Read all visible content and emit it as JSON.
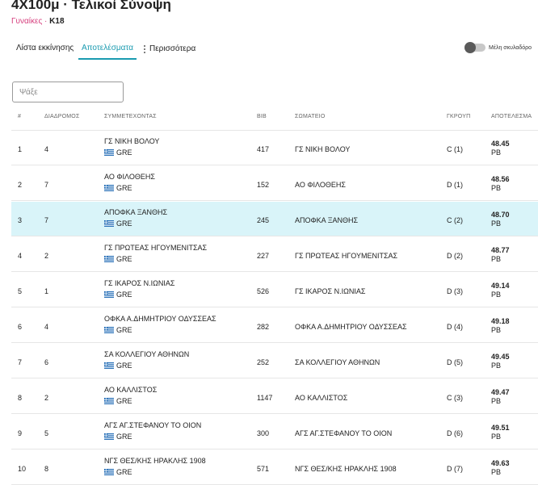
{
  "header": {
    "title": "4X100μ · Τελικοί Σύνοψη",
    "category": "Γυναίκες",
    "separator": " · ",
    "age_group": "K18"
  },
  "tabs": [
    {
      "label": "Λίστα εκκίνησης",
      "active": false
    },
    {
      "label": "Αποτελέσματα",
      "active": true
    },
    {
      "label": "Περισσότερα",
      "active": false
    }
  ],
  "dark_mode": {
    "label": "Μέλη σκυλαδόρο",
    "enabled": false
  },
  "search": {
    "placeholder": "Ψάξε",
    "value": ""
  },
  "colors": {
    "accent": "#1a9bb0",
    "category": "#d6417f",
    "highlight_row": "#d9f4f9"
  },
  "table": {
    "columns": [
      "#",
      "ΔΙΑΔΡΟΜΟΣ",
      "ΣΥΜΜΕΤΕΧΟΝΤΑΣ",
      "BIB",
      "ΣΩΜΑΤΕΙΟ",
      "ΓΚΡΟΥΠ",
      "ΑΠΟΤΕΛΕΣΜΑ"
    ],
    "rows": [
      {
        "rank": "1",
        "lane": "4",
        "name": "ΓΣ ΝΙΚΗ ΒΟΛΟΥ",
        "country": "GRE",
        "bib": "417",
        "club": "ΓΣ ΝΙΚΗ ΒΟΛΟΥ",
        "group": "C (1)",
        "mark": "48.45",
        "note": "PB"
      },
      {
        "rank": "2",
        "lane": "7",
        "name": "ΑΟ ΦΙΛΟΘΕΗΣ",
        "country": "GRE",
        "bib": "152",
        "club": "ΑΟ ΦΙΛΟΘΕΗΣ",
        "group": "D (1)",
        "mark": "48.56",
        "note": "PB"
      },
      {
        "rank": "3",
        "lane": "7",
        "name": "ΑΠΟΦΚΑ ΞΑΝΘΗΣ",
        "country": "GRE",
        "bib": "245",
        "club": "ΑΠΟΦΚΑ ΞΑΝΘΗΣ",
        "group": "C (2)",
        "mark": "48.70",
        "note": "PB"
      },
      {
        "rank": "4",
        "lane": "2",
        "name": "ΓΣ ΠΡΩΤΕΑΣ ΗΓΟΥΜΕΝΙΤΣΑΣ",
        "country": "GRE",
        "bib": "227",
        "club": "ΓΣ ΠΡΩΤΕΑΣ ΗΓΟΥΜΕΝΙΤΣΑΣ",
        "group": "D (2)",
        "mark": "48.77",
        "note": "PB"
      },
      {
        "rank": "5",
        "lane": "1",
        "name": "ΓΣ ΙΚΑΡΟΣ Ν.ΙΩΝΙΑΣ",
        "country": "GRE",
        "bib": "526",
        "club": "ΓΣ ΙΚΑΡΟΣ Ν.ΙΩΝΙΑΣ",
        "group": "D (3)",
        "mark": "49.14",
        "note": "PB"
      },
      {
        "rank": "6",
        "lane": "4",
        "name": "ΟΦΚΑ Α.ΔΗΜΗΤΡΙΟΥ ΟΔΥΣΣΕΑΣ",
        "country": "GRE",
        "bib": "282",
        "club": "ΟΦΚΑ Α.ΔΗΜΗΤΡΙΟΥ ΟΔΥΣΣΕΑΣ",
        "group": "D (4)",
        "mark": "49.18",
        "note": "PB"
      },
      {
        "rank": "7",
        "lane": "6",
        "name": "ΣΑ ΚΟΛΛΕΓΙΟΥ ΑΘΗΝΩΝ",
        "country": "GRE",
        "bib": "252",
        "club": "ΣΑ ΚΟΛΛΕΓΙΟΥ ΑΘΗΝΩΝ",
        "group": "D (5)",
        "mark": "49.45",
        "note": "PB"
      },
      {
        "rank": "8",
        "lane": "2",
        "name": "ΑΟ ΚΑΛΛΙΣΤΟΣ",
        "country": "GRE",
        "bib": "1147",
        "club": "ΑΟ ΚΑΛΛΙΣΤΟΣ",
        "group": "C (3)",
        "mark": "49.47",
        "note": "PB"
      },
      {
        "rank": "9",
        "lane": "5",
        "name": "ΑΓΣ ΑΓ.ΣΤΕΦΑΝΟΥ ΤΟ ΟΙΟΝ",
        "country": "GRE",
        "bib": "300",
        "club": "ΑΓΣ ΑΓ.ΣΤΕΦΑΝΟΥ ΤΟ ΟΙΟΝ",
        "group": "D (6)",
        "mark": "49.51",
        "note": "PB"
      },
      {
        "rank": "10",
        "lane": "8",
        "name": "ΝΓΣ ΘΕΣ/ΚΗΣ ΗΡΑΚΛΗΣ 1908",
        "country": "GRE",
        "bib": "571",
        "club": "ΝΓΣ ΘΕΣ/ΚΗΣ ΗΡΑΚΛΗΣ 1908",
        "group": "D (7)",
        "mark": "49.63",
        "note": "PB"
      }
    ]
  }
}
